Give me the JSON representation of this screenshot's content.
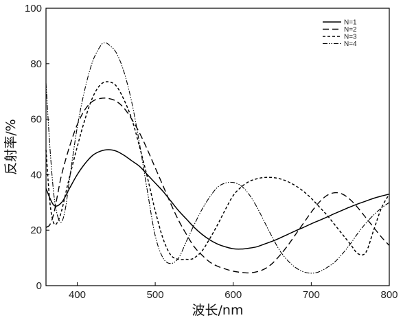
{
  "chart_data": {
    "type": "line",
    "title": "",
    "xlabel": "波长/nm",
    "ylabel": "反射率/%",
    "xlim": [
      360,
      800
    ],
    "ylim": [
      0,
      100
    ],
    "xticks": [
      400,
      500,
      600,
      700,
      800
    ],
    "yticks": [
      0,
      20,
      40,
      60,
      80,
      100
    ],
    "grid": false,
    "legend_position": "top-right",
    "series": [
      {
        "name": "N=1",
        "line_style": "solid",
        "color": "#000000",
        "x": [
          360,
          370,
          380,
          390,
          400,
          410,
          420,
          430,
          440,
          450,
          460,
          470,
          480,
          490,
          500,
          510,
          520,
          530,
          540,
          550,
          560,
          570,
          580,
          590,
          600,
          610,
          620,
          630,
          640,
          650,
          660,
          670,
          680,
          690,
          700,
          710,
          720,
          730,
          740,
          750,
          760,
          770,
          780,
          790,
          800
        ],
        "values": [
          35,
          29,
          30,
          35,
          40,
          44,
          47,
          48.5,
          49,
          48.5,
          47,
          45,
          43,
          40,
          37,
          34,
          30.5,
          27,
          24,
          21,
          18.5,
          16.5,
          15,
          14,
          13.3,
          13.2,
          13.5,
          14,
          15,
          16,
          17.2,
          18.5,
          19.8,
          21,
          22.3,
          23.5,
          24.7,
          26,
          27.2,
          28.4,
          29.5,
          30.5,
          31.5,
          32.3,
          33
        ]
      },
      {
        "name": "N=2",
        "line_style": "dashed",
        "color": "#000000",
        "x": [
          360,
          365,
          370,
          375,
          380,
          390,
          400,
          410,
          420,
          430,
          440,
          450,
          460,
          470,
          480,
          490,
          500,
          510,
          520,
          530,
          540,
          550,
          560,
          570,
          580,
          590,
          600,
          610,
          620,
          630,
          640,
          650,
          660,
          670,
          680,
          690,
          700,
          710,
          720,
          730,
          740,
          750,
          760,
          770,
          780,
          790,
          800
        ],
        "values": [
          21,
          22,
          26,
          33,
          40,
          50,
          58,
          63.5,
          66.5,
          67.5,
          67.5,
          66.5,
          64,
          60,
          55,
          49,
          42.5,
          36,
          29.5,
          23.5,
          18.5,
          14,
          11,
          8.5,
          7,
          6,
          5.2,
          4.8,
          4.6,
          5,
          6,
          8,
          11,
          14.5,
          18.5,
          22.5,
          26.5,
          30,
          32.5,
          33.5,
          33,
          31,
          28,
          24.5,
          21,
          17.5,
          14.5
        ]
      },
      {
        "name": "N=3",
        "line_style": "short-dash",
        "color": "#000000",
        "x": [
          360,
          365,
          370,
          375,
          380,
          385,
          390,
          400,
          410,
          420,
          430,
          440,
          450,
          460,
          470,
          480,
          490,
          500,
          510,
          520,
          530,
          540,
          545,
          550,
          560,
          570,
          580,
          590,
          600,
          610,
          620,
          630,
          640,
          650,
          660,
          670,
          680,
          690,
          700,
          710,
          720,
          730,
          740,
          750,
          760,
          770,
          780,
          790,
          800
        ],
        "values": [
          49,
          30,
          22.5,
          23,
          27,
          33,
          39,
          50,
          60,
          68,
          72.5,
          73.5,
          72,
          67,
          60,
          50,
          39,
          27,
          17,
          11,
          9.5,
          9.5,
          9.5,
          10,
          12.5,
          17,
          22,
          27.5,
          32.5,
          35.5,
          37.5,
          38.5,
          39,
          39,
          38.5,
          37.5,
          36,
          34,
          31.5,
          28.5,
          25.5,
          22,
          18.5,
          15,
          11.5,
          12,
          20,
          28,
          33
        ]
      },
      {
        "name": "N=4",
        "line_style": "dash-dot-dot",
        "color": "#000000",
        "x": [
          360,
          365,
          370,
          375,
          380,
          385,
          390,
          400,
          410,
          420,
          430,
          435,
          440,
          450,
          460,
          470,
          480,
          490,
          500,
          510,
          520,
          530,
          540,
          550,
          560,
          570,
          580,
          590,
          600,
          610,
          620,
          630,
          640,
          650,
          660,
          670,
          680,
          690,
          700,
          710,
          720,
          730,
          740,
          750,
          760,
          770,
          780,
          790,
          800
        ],
        "values": [
          73,
          50,
          33,
          25,
          23,
          28,
          38,
          57,
          71,
          81,
          86.5,
          87.5,
          87,
          84,
          77,
          66,
          51,
          34,
          18,
          10,
          8,
          10,
          16,
          22,
          27.5,
          32,
          35.5,
          37,
          37.2,
          36,
          33,
          28.5,
          23,
          17.5,
          12.5,
          9,
          6.5,
          5,
          4.5,
          5,
          6.5,
          8.5,
          11.5,
          15,
          19,
          22.5,
          25.5,
          28,
          30
        ]
      }
    ]
  }
}
